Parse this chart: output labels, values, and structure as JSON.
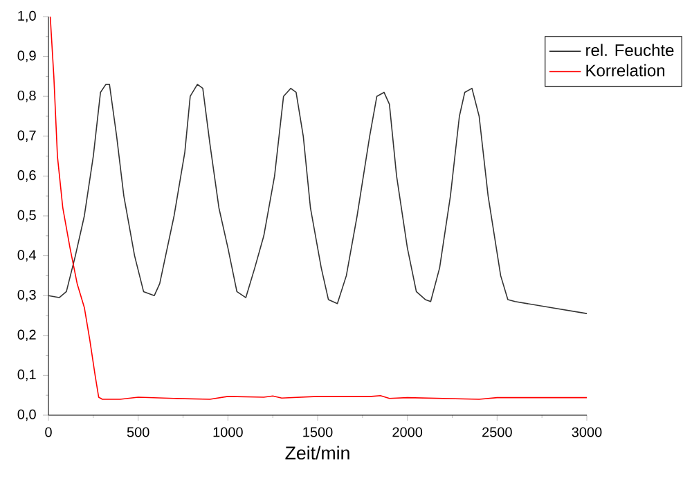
{
  "chart_data": {
    "type": "line",
    "xlabel": "Zeit/min",
    "xlim": [
      0,
      3000
    ],
    "ylim": [
      0,
      1.0
    ],
    "xticks": [
      0,
      500,
      1000,
      1500,
      2000,
      2500,
      3000
    ],
    "yticks": [
      {
        "value": 0,
        "label": "0,0"
      },
      {
        "value": 0.1,
        "label": "0,1"
      },
      {
        "value": 0.2,
        "label": "0,2"
      },
      {
        "value": 0.3,
        "label": "0,3"
      },
      {
        "value": 0.4,
        "label": "0,4"
      },
      {
        "value": 0.5,
        "label": "0,5"
      },
      {
        "value": 0.6,
        "label": "0,6"
      },
      {
        "value": 0.7,
        "label": "0,7"
      },
      {
        "value": 0.8,
        "label": "0,8"
      },
      {
        "value": 0.9,
        "label": "0,9"
      },
      {
        "value": 1.0,
        "label": "1,0"
      }
    ],
    "grid": false,
    "legend": "top right",
    "marker": "none",
    "line_style": "solid",
    "series": [
      {
        "name": "rel. Feuchte",
        "color": "#333333",
        "x": [
          0,
          60,
          100,
          150,
          200,
          250,
          290,
          320,
          340,
          380,
          420,
          480,
          530,
          590,
          620,
          700,
          760,
          790,
          830,
          860,
          900,
          950,
          1000,
          1050,
          1100,
          1150,
          1200,
          1260,
          1310,
          1350,
          1380,
          1420,
          1460,
          1520,
          1560,
          1610,
          1660,
          1720,
          1790,
          1830,
          1870,
          1900,
          1940,
          2000,
          2050,
          2100,
          2130,
          2180,
          2240,
          2290,
          2320,
          2360,
          2400,
          2450,
          2520,
          2560,
          2600,
          2800,
          3000
        ],
        "values": [
          0.3,
          0.295,
          0.31,
          0.4,
          0.5,
          0.65,
          0.81,
          0.83,
          0.83,
          0.7,
          0.55,
          0.4,
          0.31,
          0.3,
          0.33,
          0.5,
          0.66,
          0.8,
          0.83,
          0.82,
          0.68,
          0.52,
          0.42,
          0.31,
          0.295,
          0.37,
          0.45,
          0.6,
          0.8,
          0.82,
          0.81,
          0.7,
          0.52,
          0.37,
          0.29,
          0.28,
          0.35,
          0.5,
          0.7,
          0.8,
          0.81,
          0.78,
          0.6,
          0.42,
          0.31,
          0.29,
          0.285,
          0.37,
          0.55,
          0.75,
          0.81,
          0.82,
          0.75,
          0.55,
          0.35,
          0.29,
          0.285,
          0.27,
          0.255
        ]
      },
      {
        "name": "Korrelation",
        "color": "#ff0000",
        "x": [
          10,
          30,
          50,
          80,
          120,
          160,
          200,
          230,
          260,
          280,
          300,
          400,
          500,
          700,
          900,
          1000,
          1200,
          1250,
          1300,
          1500,
          1800,
          1850,
          1900,
          2000,
          2400,
          2500,
          3000
        ],
        "values": [
          1.0,
          0.85,
          0.65,
          0.52,
          0.42,
          0.33,
          0.27,
          0.19,
          0.1,
          0.045,
          0.04,
          0.04,
          0.045,
          0.042,
          0.04,
          0.047,
          0.045,
          0.048,
          0.043,
          0.047,
          0.047,
          0.049,
          0.042,
          0.044,
          0.04,
          0.044,
          0.044
        ]
      }
    ]
  }
}
